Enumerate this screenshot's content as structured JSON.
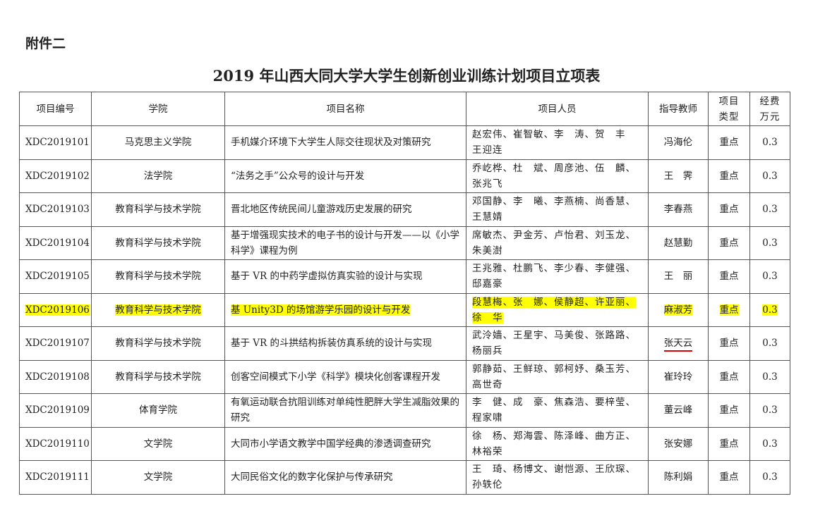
{
  "attachment_label": "附件二",
  "title": "2019 年山西大同大学大学生创新创业训练计划项目立项表",
  "highlight_color": "#ffff00",
  "underline_color": "#e00000",
  "headers": [
    "项目编号",
    "学院",
    "项目名称",
    "项目人员",
    "指导教师",
    "项目\n类型",
    "经费\n万元"
  ],
  "rows": [
    {
      "id": "XDC2019101",
      "college": "马克思主义学院",
      "name": "手机媒介环境下大学生人际交往现状及对策研究",
      "members": "赵宏伟、崔智敏、李　涛、贺　丰\n王迎连",
      "advisor": "冯海伦",
      "type": "重点",
      "funding": "0.3"
    },
    {
      "id": "XDC2019102",
      "college": "法学院",
      "name": "“法务之手”公众号的设计与开发",
      "members": "乔屹桦、杜　斌、周彦池、伍　麟、\n张兆飞",
      "advisor": "王　霁",
      "type": "重点",
      "funding": "0.3"
    },
    {
      "id": "XDC2019103",
      "college": "教育科学与技术学院",
      "name": "晋北地区传统民间儿童游戏历史发展的研究",
      "members": "邓国静、李　曦、李燕楠、尚香慧、\n王慧婧",
      "advisor": "李春燕",
      "type": "重点",
      "funding": "0.3"
    },
    {
      "id": "XDC2019104",
      "college": "教育科学与技术学院",
      "name": "基于增强现实技术的电子书的设计与开发——以《小学科学》课程为例",
      "members": "席敏杰、尹金芳、卢怡君、刘玉龙、\n朱美澍",
      "advisor": "赵慧勤",
      "type": "重点",
      "funding": "0.3"
    },
    {
      "id": "XDC2019105",
      "college": "教育科学与技术学院",
      "name": "基于 VR 的中药学虚拟仿真实验的设计与实现",
      "members": "王兆雅、杜鹏飞、李少春、李健强、\n邸嘉豪",
      "advisor": "王　丽",
      "type": "重点",
      "funding": "0.3"
    },
    {
      "id": "XDC2019106",
      "college": "教育科学与技术学院",
      "name": "基 Unity3D 的场馆游学乐园的设计与开发",
      "members": "段慧梅、张　娜、侯静超、许亚丽、\n徐　华",
      "advisor": "麻淑芳",
      "type": "重点",
      "funding": "0.3",
      "highlighted": true
    },
    {
      "id": "XDC2019107",
      "college": "教育科学与技术学院",
      "name": "基于 VR 的斗拱结构拆装仿真系统的设计与实现",
      "members": "武泠嫱、王星宇、马美俊、张路路、\n杨丽兵",
      "advisor": "张天云",
      "type": "重点",
      "funding": "0.3",
      "advisor_underlined": true
    },
    {
      "id": "XDC2019108",
      "college": "教育科学与技术学院",
      "name": "创客空间模式下小学《科学》模块化创客课程开发",
      "members": "郭静茹、王鲜琼、郭柯妤、桑玉芳、\n高世奇",
      "advisor": "崔玲玲",
      "type": "重点",
      "funding": "0.3"
    },
    {
      "id": "XDC2019109",
      "college": "体育学院",
      "name": "有氧运动联合抗阻训练对单纯性肥胖大学生减脂效果的研究",
      "members": "李　健、成　豪、焦森浩、要梓莹、\n程家啸",
      "advisor": "董云峰",
      "type": "重点",
      "funding": "0.3"
    },
    {
      "id": "XDC2019110",
      "college": "文学院",
      "name": "大同市小学语文教学中国学经典的渗透调查研究",
      "members": "徐　杨、郑海雲、陈泽峰、曲方正、\n林裕荣",
      "advisor": "张安娜",
      "type": "重点",
      "funding": "0.3"
    },
    {
      "id": "XDC2019111",
      "college": "文学院",
      "name": "大同民俗文化的数字化保护与传承研究",
      "members": "王　琦、杨博文、谢恺源、王欣琛、\n孙轶伦",
      "advisor": "陈利娟",
      "type": "重点",
      "funding": "0.3"
    }
  ]
}
